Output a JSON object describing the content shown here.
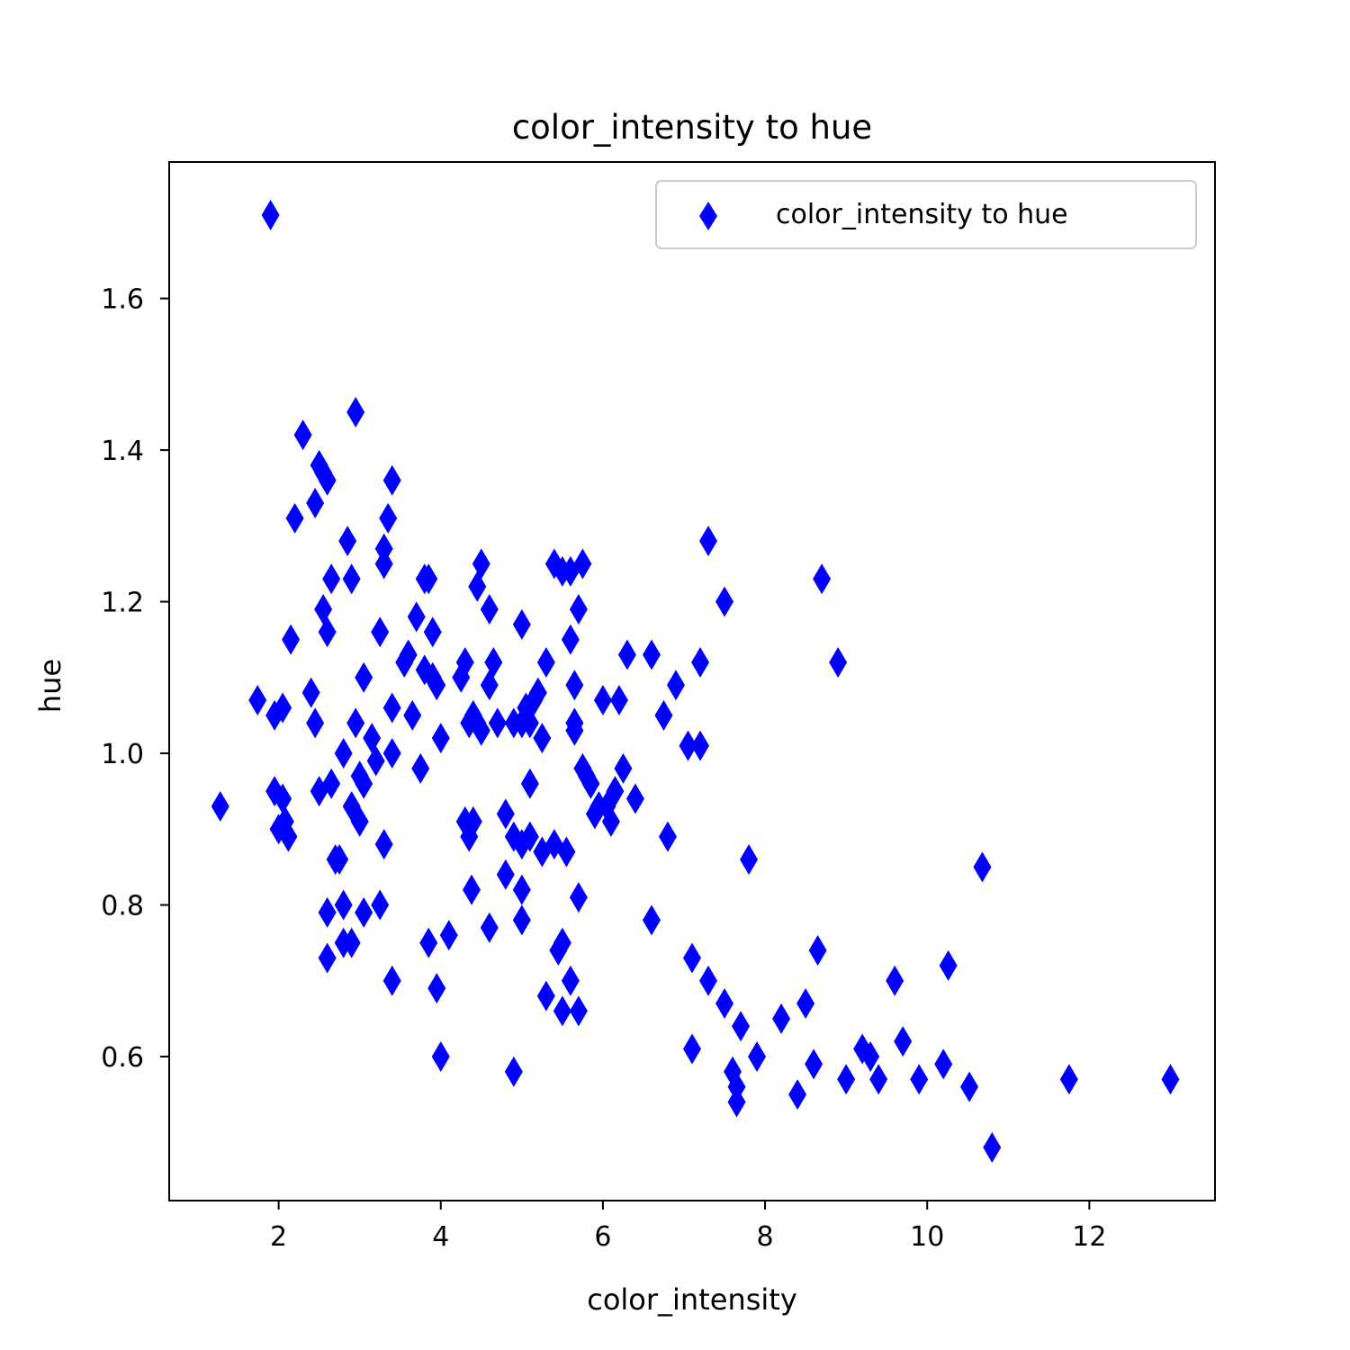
{
  "chart_data": {
    "type": "scatter",
    "title": "color_intensity to hue",
    "xlabel": "color_intensity",
    "ylabel": "hue",
    "xlim": [
      0.65,
      13.55
    ],
    "ylim": [
      0.41,
      1.78
    ],
    "xticks": [
      2,
      4,
      6,
      8,
      10,
      12
    ],
    "xtick_labels": [
      "2",
      "4",
      "6",
      "8",
      "10",
      "12"
    ],
    "yticks": [
      0.6,
      0.8,
      1.0,
      1.2,
      1.4,
      1.6
    ],
    "ytick_labels": [
      "0.6",
      "0.8",
      "1.0",
      "1.2",
      "1.4",
      "1.6"
    ],
    "grid": false,
    "legend": {
      "position": "top-right",
      "entries": [
        "color_intensity to hue"
      ]
    },
    "marker": "thin-diamond",
    "color": "#0000ff",
    "series": [
      {
        "name": "color_intensity to hue",
        "points": [
          [
            1.28,
            0.93
          ],
          [
            1.74,
            1.07
          ],
          [
            1.9,
            1.71
          ],
          [
            1.95,
            1.05
          ],
          [
            1.95,
            0.95
          ],
          [
            2.0,
            0.9
          ],
          [
            2.05,
            1.06
          ],
          [
            2.05,
            0.94
          ],
          [
            2.08,
            0.91
          ],
          [
            2.12,
            0.89
          ],
          [
            2.15,
            1.15
          ],
          [
            2.2,
            1.31
          ],
          [
            2.3,
            1.42
          ],
          [
            2.4,
            1.08
          ],
          [
            2.45,
            1.04
          ],
          [
            2.45,
            1.33
          ],
          [
            2.5,
            0.95
          ],
          [
            2.5,
            1.38
          ],
          [
            2.55,
            1.37
          ],
          [
            2.55,
            1.19
          ],
          [
            2.6,
            1.36
          ],
          [
            2.6,
            1.16
          ],
          [
            2.6,
            0.79
          ],
          [
            2.6,
            0.73
          ],
          [
            2.65,
            1.23
          ],
          [
            2.65,
            0.96
          ],
          [
            2.7,
            0.86
          ],
          [
            2.75,
            0.86
          ],
          [
            2.8,
            1.0
          ],
          [
            2.8,
            0.8
          ],
          [
            2.8,
            0.75
          ],
          [
            2.85,
            1.28
          ],
          [
            2.9,
            1.23
          ],
          [
            2.9,
            0.93
          ],
          [
            2.9,
            0.75
          ],
          [
            2.95,
            1.45
          ],
          [
            2.95,
            1.04
          ],
          [
            3.0,
            0.97
          ],
          [
            3.0,
            0.91
          ],
          [
            3.05,
            1.1
          ],
          [
            3.05,
            0.96
          ],
          [
            3.05,
            0.79
          ],
          [
            3.15,
            1.02
          ],
          [
            3.2,
            0.99
          ],
          [
            3.25,
            1.16
          ],
          [
            3.25,
            0.8
          ],
          [
            3.3,
            1.27
          ],
          [
            3.3,
            1.25
          ],
          [
            3.3,
            0.88
          ],
          [
            3.35,
            1.31
          ],
          [
            3.4,
            1.36
          ],
          [
            3.4,
            1.06
          ],
          [
            3.4,
            1.0
          ],
          [
            3.4,
            0.7
          ],
          [
            3.55,
            1.12
          ],
          [
            3.6,
            1.13
          ],
          [
            3.65,
            1.05
          ],
          [
            3.7,
            1.18
          ],
          [
            3.75,
            0.98
          ],
          [
            3.8,
            1.23
          ],
          [
            3.8,
            1.11
          ],
          [
            3.85,
            1.23
          ],
          [
            3.85,
            0.75
          ],
          [
            3.9,
            1.16
          ],
          [
            3.9,
            1.1
          ],
          [
            3.95,
            1.09
          ],
          [
            3.95,
            0.69
          ],
          [
            4.0,
            1.02
          ],
          [
            4.0,
            0.6
          ],
          [
            4.1,
            0.76
          ],
          [
            4.25,
            1.1
          ],
          [
            4.3,
            1.12
          ],
          [
            4.3,
            0.91
          ],
          [
            4.35,
            1.04
          ],
          [
            4.35,
            0.89
          ],
          [
            4.38,
            0.82
          ],
          [
            4.4,
            1.05
          ],
          [
            4.4,
            0.91
          ],
          [
            4.45,
            1.04
          ],
          [
            4.45,
            1.22
          ],
          [
            4.5,
            1.25
          ],
          [
            4.5,
            1.03
          ],
          [
            4.6,
            1.19
          ],
          [
            4.6,
            1.09
          ],
          [
            4.6,
            0.77
          ],
          [
            4.65,
            1.12
          ],
          [
            4.7,
            1.04
          ],
          [
            4.8,
            0.92
          ],
          [
            4.8,
            0.84
          ],
          [
            4.9,
            1.04
          ],
          [
            4.9,
            0.89
          ],
          [
            4.9,
            0.58
          ],
          [
            5.0,
            1.17
          ],
          [
            5.0,
            1.04
          ],
          [
            5.0,
            0.88
          ],
          [
            5.0,
            0.82
          ],
          [
            5.0,
            0.78
          ],
          [
            5.05,
            1.06
          ],
          [
            5.1,
            1.04
          ],
          [
            5.1,
            0.96
          ],
          [
            5.1,
            0.89
          ],
          [
            5.15,
            1.07
          ],
          [
            5.2,
            1.08
          ],
          [
            5.25,
            1.02
          ],
          [
            5.25,
            0.87
          ],
          [
            5.3,
            1.12
          ],
          [
            5.3,
            0.68
          ],
          [
            5.4,
            1.25
          ],
          [
            5.4,
            0.88
          ],
          [
            5.45,
            0.74
          ],
          [
            5.5,
            1.24
          ],
          [
            5.5,
            0.75
          ],
          [
            5.5,
            0.66
          ],
          [
            5.55,
            0.87
          ],
          [
            5.6,
            1.24
          ],
          [
            5.6,
            1.15
          ],
          [
            5.6,
            0.7
          ],
          [
            5.65,
            1.09
          ],
          [
            5.65,
            1.04
          ],
          [
            5.65,
            1.03
          ],
          [
            5.7,
            1.19
          ],
          [
            5.7,
            0.81
          ],
          [
            5.7,
            0.66
          ],
          [
            5.75,
            1.25
          ],
          [
            5.75,
            0.98
          ],
          [
            5.8,
            0.97
          ],
          [
            5.85,
            0.96
          ],
          [
            5.9,
            0.92
          ],
          [
            5.95,
            0.93
          ],
          [
            6.0,
            1.07
          ],
          [
            6.05,
            0.93
          ],
          [
            6.1,
            0.91
          ],
          [
            6.15,
            0.95
          ],
          [
            6.2,
            1.07
          ],
          [
            6.25,
            0.98
          ],
          [
            6.3,
            1.13
          ],
          [
            6.4,
            0.94
          ],
          [
            6.6,
            1.13
          ],
          [
            6.6,
            0.78
          ],
          [
            6.75,
            1.05
          ],
          [
            6.8,
            0.89
          ],
          [
            6.9,
            1.09
          ],
          [
            7.05,
            1.01
          ],
          [
            7.1,
            0.73
          ],
          [
            7.1,
            0.61
          ],
          [
            7.2,
            1.12
          ],
          [
            7.2,
            1.01
          ],
          [
            7.3,
            1.28
          ],
          [
            7.3,
            0.7
          ],
          [
            7.5,
            1.2
          ],
          [
            7.5,
            0.67
          ],
          [
            7.6,
            0.58
          ],
          [
            7.65,
            0.56
          ],
          [
            7.65,
            0.54
          ],
          [
            7.7,
            0.64
          ],
          [
            7.8,
            0.86
          ],
          [
            7.9,
            0.6
          ],
          [
            8.2,
            0.65
          ],
          [
            8.4,
            0.55
          ],
          [
            8.5,
            0.67
          ],
          [
            8.6,
            0.59
          ],
          [
            8.65,
            0.74
          ],
          [
            8.7,
            1.23
          ],
          [
            8.9,
            1.12
          ],
          [
            9.0,
            0.57
          ],
          [
            9.2,
            0.61
          ],
          [
            9.3,
            0.6
          ],
          [
            9.4,
            0.57
          ],
          [
            9.6,
            0.7
          ],
          [
            9.7,
            0.62
          ],
          [
            9.9,
            0.57
          ],
          [
            10.2,
            0.59
          ],
          [
            10.26,
            0.72
          ],
          [
            10.52,
            0.56
          ],
          [
            10.68,
            0.85
          ],
          [
            10.8,
            0.48
          ],
          [
            11.75,
            0.57
          ],
          [
            13.0,
            0.57
          ]
        ]
      }
    ]
  }
}
